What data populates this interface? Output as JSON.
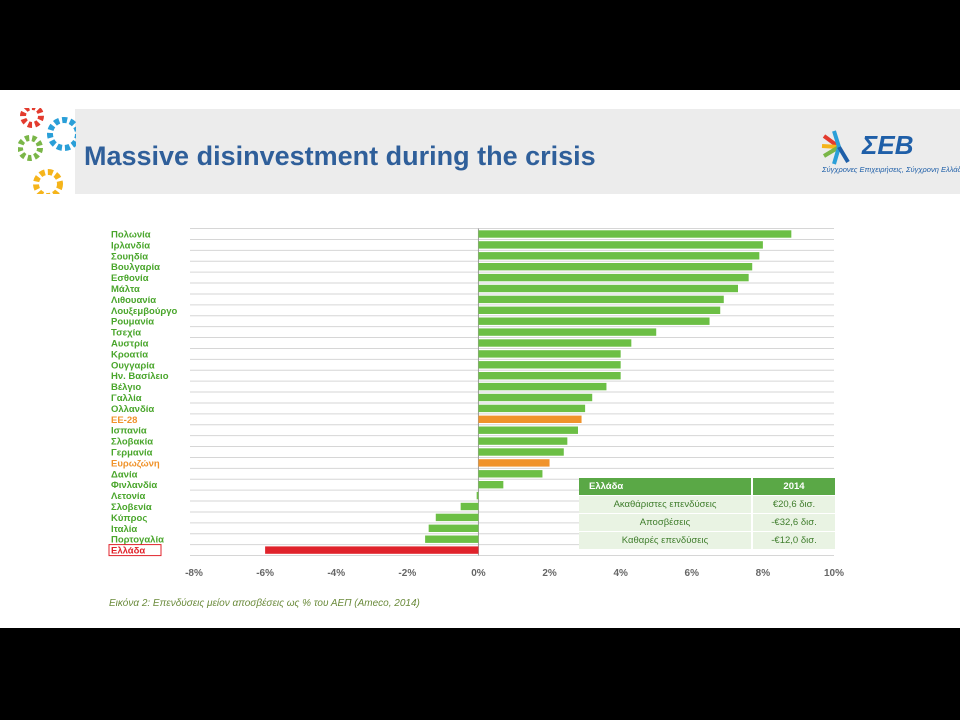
{
  "slide": {
    "title": "Massive disinvestment during the crisis",
    "brand": {
      "name": "ΣΕΒ",
      "tagline": "Σύγχρονες Επιχειρήσεις, Σύγχρονη Ελλάδα"
    },
    "caption": "Εικόνα 2: Επενδύσεις μείον αποσβέσεις ως % του ΑΕΠ (Ameco, 2014)"
  },
  "colors": {
    "positive": "#6cbf45",
    "eu_average": "#f0932b",
    "greece": "#e0232b",
    "label_green": "#4aa62c",
    "title": "#2f5f9a"
  },
  "chart_data": {
    "type": "bar",
    "orientation": "horizontal",
    "categories": [
      "Πολωνία",
      "Ιρλανδία",
      "Σουηδία",
      "Βουλγαρία",
      "Εσθονία",
      "Μάλτα",
      "Λιθουανία",
      "Λουξεμβούργο",
      "Ρουμανία",
      "Τσεχία",
      "Αυστρία",
      "Κροατία",
      "Ουγγαρία",
      "Ην. Βασίλειο",
      "Βέλγιο",
      "Γαλλία",
      "Ολλανδία",
      "ΕΕ-28",
      "Ισπανία",
      "Σλοβακία",
      "Γερμανία",
      "Ευρωζώνη",
      "Δανία",
      "Φινλανδία",
      "Λετονία",
      "Σλοβενία",
      "Κύπρος",
      "Ιταλία",
      "Πορτογαλία",
      "Ελλάδα"
    ],
    "values": [
      8.8,
      8.0,
      7.9,
      7.7,
      7.6,
      7.3,
      6.9,
      6.8,
      6.5,
      5.0,
      4.3,
      4.0,
      4.0,
      4.0,
      3.6,
      3.2,
      3.0,
      2.9,
      2.8,
      2.5,
      2.4,
      2.0,
      1.8,
      0.7,
      -0.05,
      -0.5,
      -1.2,
      -1.4,
      -1.5,
      -6.0
    ],
    "highlight": {
      "ΕΕ-28": "eu_average",
      "Ευρωζώνη": "eu_average",
      "Ελλάδα": "greece"
    },
    "xlim": [
      -8,
      10
    ],
    "x_ticks": [
      "-8%",
      "-6%",
      "-4%",
      "-2%",
      "0%",
      "2%",
      "4%",
      "6%",
      "8%",
      "10%"
    ],
    "xlabel": "",
    "ylabel": "",
    "grid": true
  },
  "summary_table": {
    "header": {
      "label": "Ελλάδα",
      "value": "2014"
    },
    "rows": [
      {
        "label": "Ακαθάριστες επενδύσεις",
        "value": "€20,6 δισ."
      },
      {
        "label": "Αποσβέσεις",
        "value": "-€32,6 δισ."
      },
      {
        "label": "Καθαρές επενδύσεις",
        "value": "-€12,0 δισ."
      }
    ]
  }
}
